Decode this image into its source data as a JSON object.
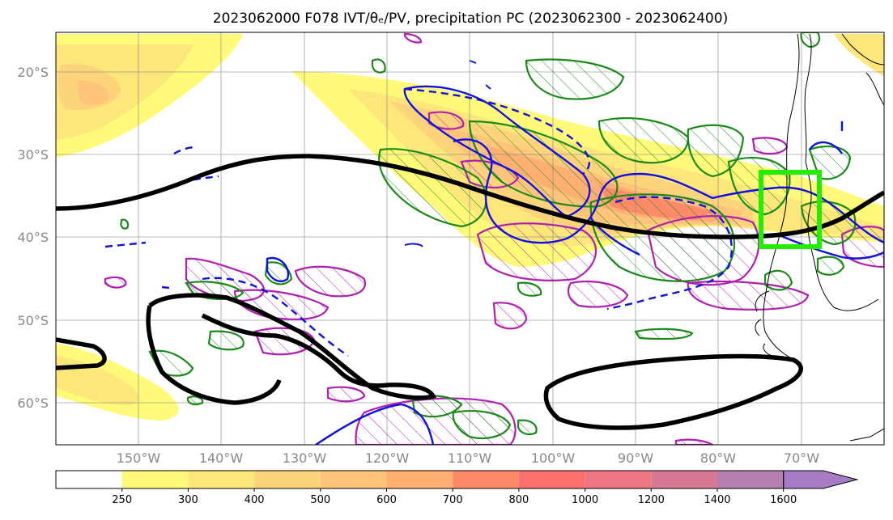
{
  "title": "2023062000 F078 IVT/θₑ/PV, precipitation PC (2023062300 - 2023062400)",
  "map": {
    "lat_ticks": [
      "20°S",
      "30°S",
      "40°S",
      "50°S",
      "60°S"
    ],
    "lon_ticks": [
      "150°W",
      "140°W",
      "130°W",
      "120°W",
      "110°W",
      "100°W",
      "90°W",
      "80°W",
      "70°W"
    ],
    "lat_range": [
      -65,
      -15
    ],
    "lon_range": [
      -160,
      -60
    ],
    "grid": true,
    "projection": "PlateCarree",
    "highlight_box": {
      "lat": [
        -41,
        -32
      ],
      "lon": [
        -76,
        -68
      ],
      "color": "#22ee00"
    },
    "layers": {
      "ivt_fill": "IVT shading (yellow–orange–red–purple)",
      "theta_e": "black thick contour",
      "pv_positive": "blue contours (solid/dashed)",
      "precip_green": "green hatched contours",
      "precip_magenta": "magenta hatched contours"
    }
  },
  "colorbar": {
    "levels": [
      "250",
      "300",
      "400",
      "500",
      "600",
      "700",
      "800",
      "1000",
      "1200",
      "1400",
      "1600"
    ],
    "colors": [
      "#ffffff",
      "#fffa7a",
      "#fde77a",
      "#fdd47c",
      "#fec47a",
      "#feb072",
      "#fd8a68",
      "#f9706e",
      "#ee7582",
      "#d67a94",
      "#b57fb1",
      "#a77cc6"
    ],
    "extend": "max"
  }
}
